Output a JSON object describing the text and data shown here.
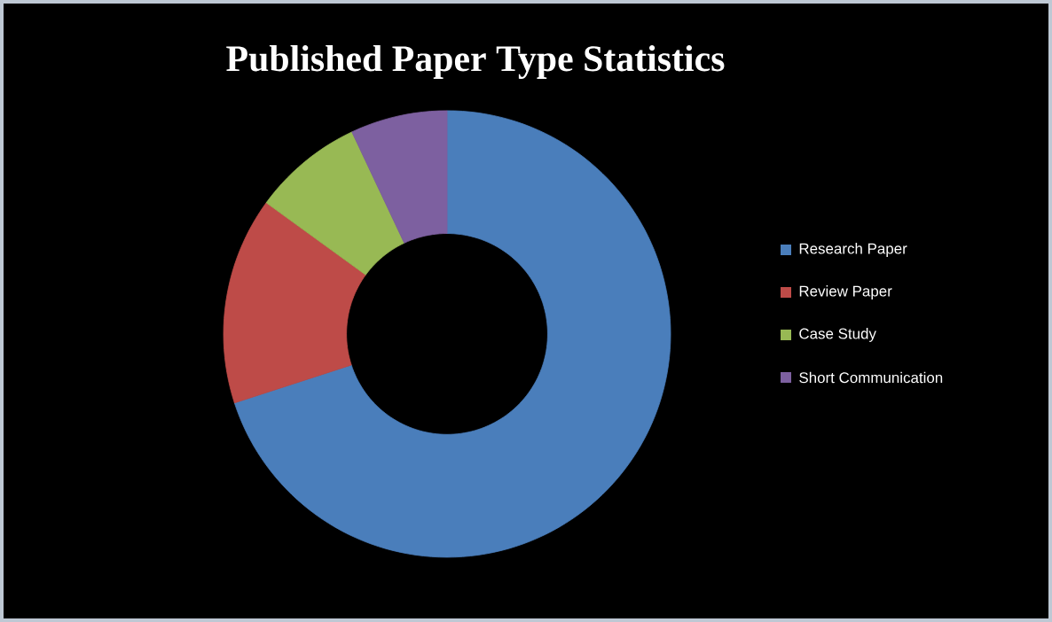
{
  "chart_data": {
    "type": "donut",
    "title": "Published Paper Type Statistics",
    "categories": [
      "Research Paper",
      "Review Paper",
      "Case Study",
      "Short Communication"
    ],
    "values": [
      70,
      15,
      8,
      7
    ],
    "colors": [
      "#4a7ebb",
      "#be4b48",
      "#98b954",
      "#7d60a0"
    ],
    "legend": "right"
  }
}
